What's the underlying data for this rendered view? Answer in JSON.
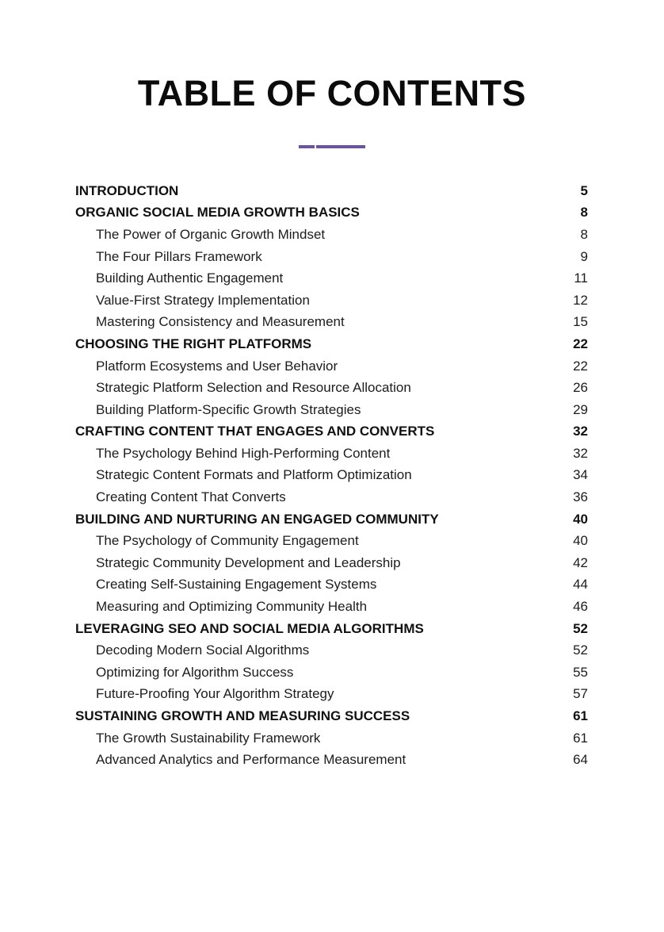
{
  "page": {
    "title": "TABLE OF CONTENTS",
    "accent_color": "#6c52a4",
    "text_color": "#1a1a1a"
  },
  "toc": {
    "entries": [
      {
        "label": "INTRODUCTION",
        "page": "5",
        "level": "chapter"
      },
      {
        "label": "ORGANIC SOCIAL MEDIA GROWTH BASICS",
        "page": "8",
        "level": "chapter"
      },
      {
        "label": "The Power of Organic Growth Mindset",
        "page": "8",
        "level": "section"
      },
      {
        "label": "The Four Pillars Framework",
        "page": "9",
        "level": "section"
      },
      {
        "label": "Building Authentic Engagement",
        "page": "11",
        "level": "section"
      },
      {
        "label": "Value-First Strategy Implementation",
        "page": "12",
        "level": "section"
      },
      {
        "label": "Mastering Consistency and Measurement",
        "page": "15",
        "level": "section"
      },
      {
        "label": "CHOOSING THE RIGHT PLATFORMS",
        "page": "22",
        "level": "chapter"
      },
      {
        "label": "Platform Ecosystems and User Behavior",
        "page": "22",
        "level": "section"
      },
      {
        "label": "Strategic Platform Selection and Resource Allocation",
        "page": "26",
        "level": "section"
      },
      {
        "label": "Building Platform-Specific Growth Strategies",
        "page": "29",
        "level": "section"
      },
      {
        "label": "CRAFTING CONTENT THAT ENGAGES AND CONVERTS",
        "page": "32",
        "level": "chapter"
      },
      {
        "label": "The Psychology Behind High-Performing Content",
        "page": "32",
        "level": "section"
      },
      {
        "label": "Strategic Content Formats and Platform Optimization",
        "page": "34",
        "level": "section"
      },
      {
        "label": "Creating Content That Converts",
        "page": "36",
        "level": "section"
      },
      {
        "label": "BUILDING AND NURTURING AN ENGAGED COMMUNITY",
        "page": "40",
        "level": "chapter"
      },
      {
        "label": "The Psychology of Community Engagement",
        "page": "40",
        "level": "section"
      },
      {
        "label": "Strategic Community Development and Leadership",
        "page": "42",
        "level": "section"
      },
      {
        "label": "Creating Self-Sustaining Engagement Systems",
        "page": "44",
        "level": "section"
      },
      {
        "label": "Measuring and Optimizing Community Health",
        "page": "46",
        "level": "section"
      },
      {
        "label": "LEVERAGING SEO AND SOCIAL MEDIA ALGORITHMS",
        "page": "52",
        "level": "chapter"
      },
      {
        "label": "Decoding Modern Social Algorithms",
        "page": "52",
        "level": "section"
      },
      {
        "label": "Optimizing for Algorithm Success",
        "page": "55",
        "level": "section"
      },
      {
        "label": "Future-Proofing Your Algorithm Strategy",
        "page": "57",
        "level": "section"
      },
      {
        "label": "SUSTAINING GROWTH AND MEASURING SUCCESS",
        "page": "61",
        "level": "chapter"
      },
      {
        "label": "The Growth Sustainability Framework",
        "page": "61",
        "level": "section"
      },
      {
        "label": "Advanced Analytics and Performance Measurement",
        "page": "64",
        "level": "section"
      }
    ]
  }
}
